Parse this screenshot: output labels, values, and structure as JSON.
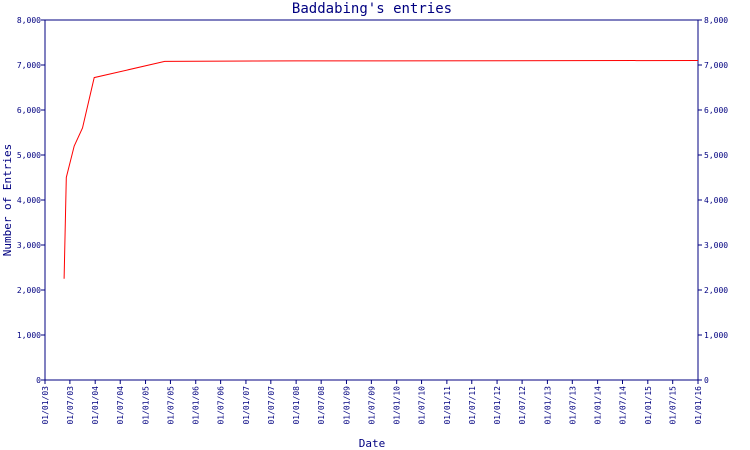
{
  "chart_data": {
    "type": "line",
    "title": "Baddabing's entries",
    "xlabel": "Date",
    "ylabel": "Number of Entries",
    "ylim": [
      0,
      8000
    ],
    "y_ticks": [
      "0",
      "1,000",
      "2,000",
      "3,000",
      "4,000",
      "5,000",
      "6,000",
      "7,000",
      "8,000"
    ],
    "x_ticks": [
      "01/01/03",
      "01/07/03",
      "01/01/04",
      "01/07/04",
      "01/01/05",
      "01/07/05",
      "01/01/06",
      "01/07/06",
      "01/01/07",
      "01/07/07",
      "01/01/08",
      "01/07/08",
      "01/01/09",
      "01/07/09",
      "01/01/10",
      "01/07/10",
      "01/01/11",
      "01/07/11",
      "01/01/12",
      "01/07/12",
      "01/01/13",
      "01/07/13",
      "01/01/14",
      "01/07/14",
      "01/01/15",
      "01/07/15",
      "01/01/16"
    ],
    "grid": false,
    "right_axis": true,
    "series": [
      {
        "color": "#ff0000",
        "points": [
          {
            "x": "2003-05-20",
            "y": 2250
          },
          {
            "x": "2003-06-05",
            "y": 4500
          },
          {
            "x": "2003-08-01",
            "y": 5200
          },
          {
            "x": "2003-10-01",
            "y": 5600
          },
          {
            "x": "2003-12-25",
            "y": 6720
          },
          {
            "x": "2005-05-20",
            "y": 7080
          },
          {
            "x": "2007-12-31",
            "y": 7090
          },
          {
            "x": "2016-01-01",
            "y": 7100
          }
        ]
      }
    ]
  }
}
